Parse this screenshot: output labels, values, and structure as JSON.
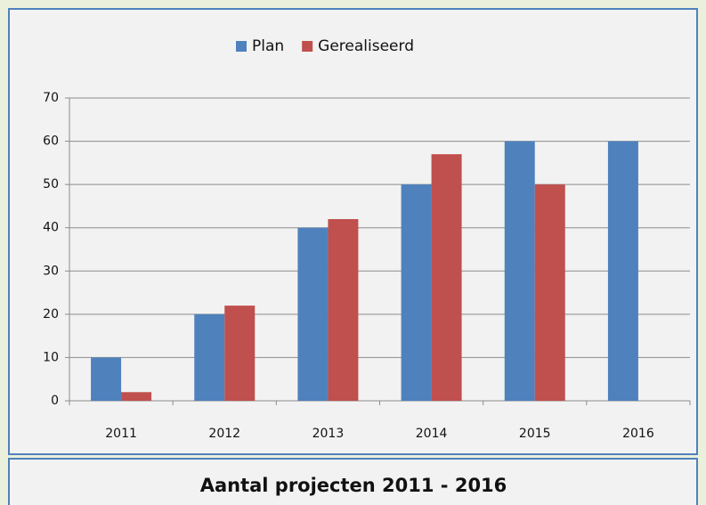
{
  "chart_data": {
    "type": "bar",
    "title": "Aantal projecten 2011 - 2016",
    "categories": [
      "2011",
      "2012",
      "2013",
      "2014",
      "2015",
      "2016"
    ],
    "series": [
      {
        "name": "Plan",
        "color": "#4f81bd",
        "values": [
          10,
          20,
          40,
          50,
          60,
          60
        ]
      },
      {
        "name": "Gerealiseerd",
        "color": "#c0504d",
        "values": [
          2,
          22,
          42,
          57,
          50,
          null
        ]
      }
    ],
    "ylim": [
      0,
      70
    ],
    "yticks": [
      0,
      10,
      20,
      30,
      40,
      50,
      60,
      70
    ],
    "grid": true,
    "legend": "top"
  }
}
